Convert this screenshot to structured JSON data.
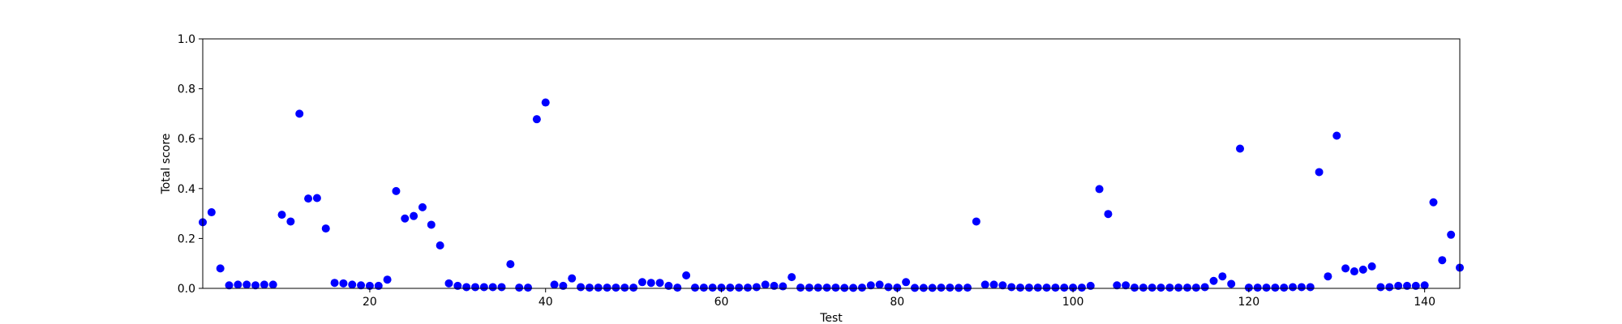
{
  "chart_data": {
    "type": "scatter",
    "title": "",
    "xlabel": "Test",
    "ylabel": "Total score",
    "xlim": [
      1,
      144
    ],
    "ylim": [
      0,
      1
    ],
    "x_ticks": [
      20,
      40,
      60,
      80,
      100,
      120,
      140
    ],
    "x_tick_labels": [
      "20",
      "40",
      "60",
      "80",
      "100",
      "120",
      "140"
    ],
    "y_ticks": [
      0,
      0.2,
      0.4,
      0.6,
      0.8,
      1.0
    ],
    "y_tick_labels": [
      "0.0",
      "0.2",
      "0.4",
      "0.6",
      "0.8",
      "1.0"
    ],
    "grid": false,
    "legend": "none",
    "marker_color": "#0000ff",
    "series": [
      {
        "x": [
          1,
          2,
          3,
          4,
          5,
          6,
          7,
          8,
          9,
          10,
          11,
          12,
          13,
          14,
          15,
          16,
          17,
          18,
          19,
          20,
          21,
          22,
          23,
          24,
          25,
          26,
          27,
          28,
          29,
          30,
          31,
          32,
          33,
          34,
          35,
          36,
          37,
          38,
          39,
          40,
          41,
          42,
          43,
          44,
          45,
          46,
          47,
          48,
          49,
          50,
          51,
          52,
          53,
          54,
          55,
          56,
          57,
          58,
          59,
          60,
          61,
          62,
          63,
          64,
          65,
          66,
          67,
          68,
          69,
          70,
          71,
          72,
          73,
          74,
          75,
          76,
          77,
          78,
          79,
          80,
          81,
          82,
          83,
          84,
          85,
          86,
          87,
          88,
          89,
          90,
          91,
          92,
          93,
          94,
          95,
          96,
          97,
          98,
          99,
          100,
          101,
          102,
          103,
          104,
          105,
          106,
          107,
          108,
          109,
          110,
          111,
          112,
          113,
          114,
          115,
          116,
          117,
          118,
          119,
          120,
          121,
          122,
          123,
          124,
          125,
          126,
          127,
          128,
          129,
          130,
          131,
          132,
          133,
          134,
          135,
          136,
          137,
          138,
          139,
          140,
          141,
          142,
          143,
          144
        ],
        "y": [
          0.265,
          0.305,
          0.08,
          0.012,
          0.015,
          0.015,
          0.012,
          0.015,
          0.015,
          0.295,
          0.268,
          0.7,
          0.36,
          0.362,
          0.24,
          0.022,
          0.02,
          0.015,
          0.012,
          0.01,
          0.01,
          0.035,
          0.39,
          0.28,
          0.29,
          0.325,
          0.255,
          0.172,
          0.02,
          0.01,
          0.005,
          0.005,
          0.005,
          0.005,
          0.005,
          0.097,
          0.003,
          0.003,
          0.678,
          0.745,
          0.015,
          0.01,
          0.04,
          0.005,
          0.003,
          0.003,
          0.003,
          0.003,
          0.003,
          0.003,
          0.025,
          0.022,
          0.022,
          0.01,
          0.003,
          0.052,
          0.003,
          0.003,
          0.003,
          0.003,
          0.003,
          0.003,
          0.003,
          0.005,
          0.015,
          0.01,
          0.008,
          0.045,
          0.003,
          0.003,
          0.003,
          0.003,
          0.003,
          0.002,
          0.002,
          0.003,
          0.012,
          0.015,
          0.005,
          0.003,
          0.025,
          0.002,
          0.002,
          0.002,
          0.003,
          0.003,
          0.002,
          0.003,
          0.268,
          0.015,
          0.015,
          0.012,
          0.005,
          0.003,
          0.003,
          0.003,
          0.003,
          0.003,
          0.003,
          0.003,
          0.003,
          0.01,
          0.398,
          0.298,
          0.012,
          0.012,
          0.003,
          0.003,
          0.003,
          0.003,
          0.003,
          0.003,
          0.003,
          0.003,
          0.005,
          0.03,
          0.048,
          0.018,
          0.56,
          0.003,
          0.003,
          0.003,
          0.003,
          0.003,
          0.005,
          0.005,
          0.005,
          0.466,
          0.048,
          0.612,
          0.08,
          0.068,
          0.075,
          0.088,
          0.005,
          0.005,
          0.01,
          0.01,
          0.01,
          0.012,
          0.345,
          0.113,
          0.215,
          0.083
        ]
      }
    ]
  }
}
